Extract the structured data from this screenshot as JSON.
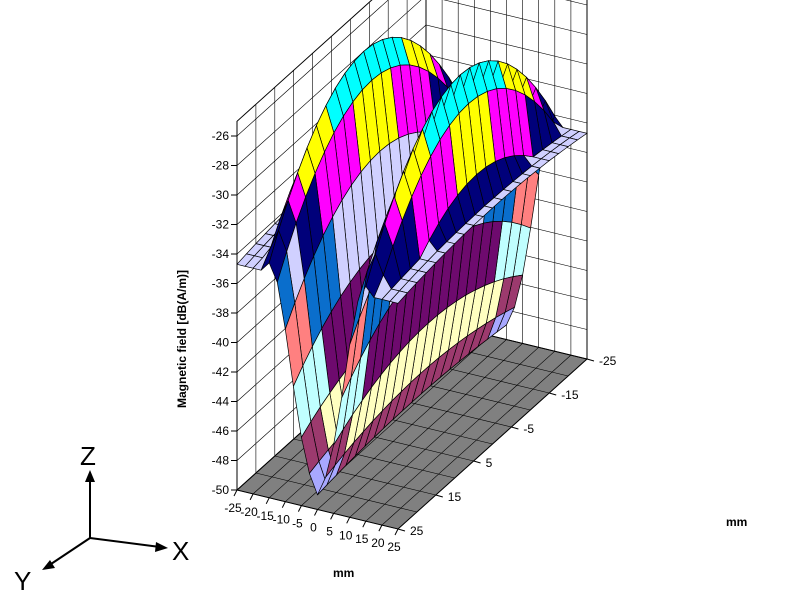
{
  "chart_data": {
    "type": "surface3d",
    "zlabel": "Magnetic field [dB(A/m)]",
    "xlabel": "mm",
    "ylabel": "mm",
    "x_ticks": [
      "-25",
      "-20",
      "-15",
      "-10",
      "-5",
      "0",
      "5",
      "10",
      "15",
      "20",
      "25"
    ],
    "y_ticks": [
      "-25",
      "-15",
      "-5",
      "5",
      "15",
      "25"
    ],
    "z_ticks": [
      "-26",
      "-28",
      "-30",
      "-32",
      "-34",
      "-36",
      "-38",
      "-40",
      "-42",
      "-44",
      "-46",
      "-48",
      "-50"
    ],
    "xlim": [
      -25,
      25
    ],
    "ylim": [
      -25,
      25
    ],
    "zlim": [
      -50,
      -25
    ],
    "grid": true,
    "description_of_surface": {
      "peaks": [
        {
          "x": -15,
          "y": 0,
          "z": -25.5
        },
        {
          "x": 15,
          "y": 0,
          "z": -26
        }
      ],
      "valley": {
        "x": 0,
        "z": -50
      }
    },
    "band_colors": [
      "#a8a8ff",
      "#9c3a6e",
      "#ffffc0",
      "#c0ffff",
      "#6e0a6e",
      "#ff8080",
      "#0a6ecc",
      "#d0d0ff",
      "#00007a",
      "#ff00ff",
      "#ffff00",
      "#00ffff"
    ],
    "floor_color": "#808080"
  },
  "triad": {
    "z": "Z",
    "x": "X",
    "y": "Y"
  }
}
